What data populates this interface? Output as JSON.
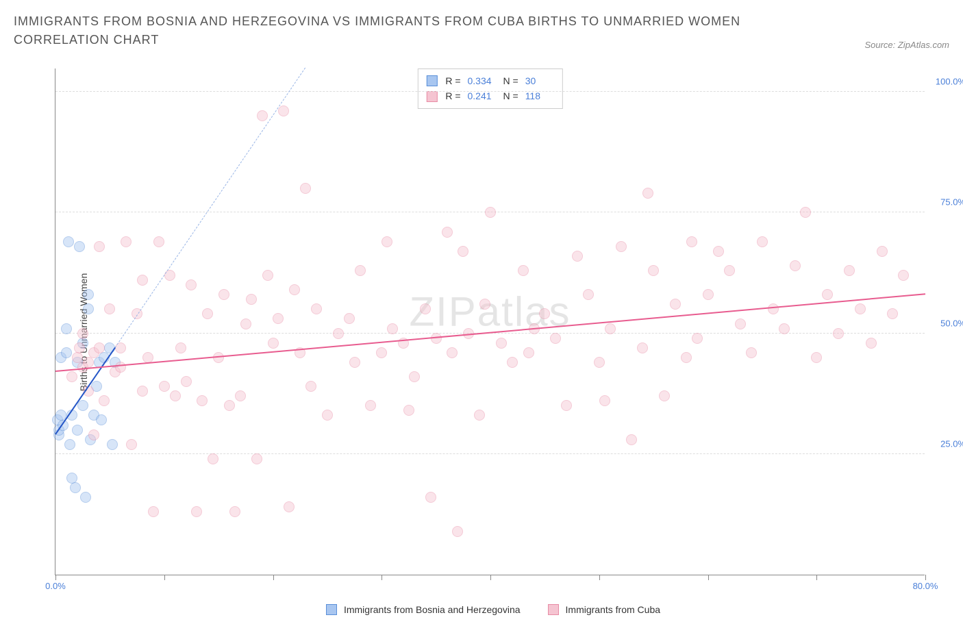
{
  "header": {
    "title": "IMMIGRANTS FROM BOSNIA AND HERZEGOVINA VS IMMIGRANTS FROM CUBA BIRTHS TO UNMARRIED WOMEN CORRELATION CHART",
    "source": "Source: ZipAtlas.com"
  },
  "watermark": {
    "bold": "ZIP",
    "thin": "atlas"
  },
  "chart": {
    "type": "scatter",
    "background_color": "#ffffff",
    "grid_color": "#dddddd",
    "axis_color": "#888888",
    "label_color": "#4a7fd8",
    "title_color": "#555555",
    "axis_title_color": "#444444",
    "y_axis_title": "Births to Unmarried Women",
    "xlim": [
      0,
      80
    ],
    "ylim": [
      0,
      105
    ],
    "y_ticks": [
      25,
      50,
      75,
      100
    ],
    "y_tick_labels": [
      "25.0%",
      "50.0%",
      "75.0%",
      "100.0%"
    ],
    "x_ticks": [
      0,
      10,
      20,
      30,
      40,
      50,
      60,
      70,
      80
    ],
    "x_tick_labels": [
      "0.0%",
      "",
      "",
      "",
      "",
      "",
      "",
      "",
      "80.0%"
    ],
    "marker_radius": 8,
    "marker_opacity": 0.45,
    "series": [
      {
        "id": "bosnia",
        "label": "Immigrants from Bosnia and Herzegovina",
        "fill": "#a8c6f0",
        "stroke": "#5a8fd8",
        "trend_color": "#2456c7",
        "trend_dash_color": "#9ab6e6",
        "stats": {
          "R": "0.334",
          "N": "30"
        },
        "trend": {
          "x1": 0,
          "y1": 29,
          "x2": 5.5,
          "y2": 47
        },
        "trend_dash": {
          "x1": 5.5,
          "y1": 47,
          "x2": 23,
          "y2": 105
        },
        "points": [
          [
            0.2,
            32
          ],
          [
            0.3,
            29
          ],
          [
            0.3,
            30
          ],
          [
            0.5,
            33
          ],
          [
            0.5,
            45
          ],
          [
            0.7,
            31
          ],
          [
            1.0,
            46
          ],
          [
            1.0,
            51
          ],
          [
            1.2,
            69
          ],
          [
            1.3,
            27
          ],
          [
            1.5,
            33
          ],
          [
            1.5,
            20
          ],
          [
            1.8,
            18
          ],
          [
            2.0,
            30
          ],
          [
            2.0,
            44
          ],
          [
            2.2,
            68
          ],
          [
            2.5,
            35
          ],
          [
            2.5,
            48
          ],
          [
            2.8,
            16
          ],
          [
            3.0,
            58
          ],
          [
            3.0,
            55
          ],
          [
            3.2,
            28
          ],
          [
            3.5,
            33
          ],
          [
            3.8,
            39
          ],
          [
            4.0,
            44
          ],
          [
            4.2,
            32
          ],
          [
            4.5,
            45
          ],
          [
            5.0,
            47
          ],
          [
            5.2,
            27
          ],
          [
            5.5,
            44
          ]
        ]
      },
      {
        "id": "cuba",
        "label": "Immigrants from Cuba",
        "fill": "#f5c4d1",
        "stroke": "#e88ba5",
        "trend_color": "#e85c8f",
        "stats": {
          "R": "0.241",
          "N": "118"
        },
        "trend": {
          "x1": 0,
          "y1": 42,
          "x2": 80,
          "y2": 58
        },
        "points": [
          [
            1.5,
            41
          ],
          [
            2.0,
            45
          ],
          [
            2.2,
            47
          ],
          [
            2.5,
            50
          ],
          [
            2.5,
            43
          ],
          [
            3.0,
            38
          ],
          [
            3.0,
            44
          ],
          [
            3.5,
            46
          ],
          [
            3.5,
            29
          ],
          [
            4.0,
            47
          ],
          [
            4.0,
            68
          ],
          [
            4.5,
            36
          ],
          [
            5.0,
            55
          ],
          [
            5.5,
            42
          ],
          [
            6.0,
            43
          ],
          [
            6.0,
            47
          ],
          [
            6.5,
            69
          ],
          [
            7.0,
            27
          ],
          [
            7.5,
            54
          ],
          [
            8.0,
            61
          ],
          [
            8.0,
            38
          ],
          [
            8.5,
            45
          ],
          [
            9.0,
            13
          ],
          [
            9.5,
            69
          ],
          [
            10.0,
            39
          ],
          [
            10.5,
            62
          ],
          [
            11.0,
            37
          ],
          [
            11.5,
            47
          ],
          [
            12.0,
            40
          ],
          [
            12.5,
            60
          ],
          [
            13.0,
            13
          ],
          [
            13.5,
            36
          ],
          [
            14.0,
            54
          ],
          [
            14.5,
            24
          ],
          [
            15.0,
            45
          ],
          [
            15.5,
            58
          ],
          [
            16.0,
            35
          ],
          [
            16.5,
            13
          ],
          [
            17.0,
            37
          ],
          [
            17.5,
            52
          ],
          [
            18.0,
            57
          ],
          [
            18.5,
            24
          ],
          [
            19.0,
            95
          ],
          [
            19.5,
            62
          ],
          [
            20.0,
            48
          ],
          [
            20.5,
            53
          ],
          [
            21.0,
            96
          ],
          [
            21.5,
            14
          ],
          [
            22.0,
            59
          ],
          [
            22.5,
            46
          ],
          [
            23.0,
            80
          ],
          [
            23.5,
            39
          ],
          [
            24.0,
            55
          ],
          [
            25.0,
            33
          ],
          [
            26.0,
            50
          ],
          [
            27.0,
            53
          ],
          [
            27.5,
            44
          ],
          [
            28.0,
            63
          ],
          [
            29.0,
            35
          ],
          [
            30.0,
            46
          ],
          [
            30.5,
            69
          ],
          [
            31.0,
            51
          ],
          [
            32.0,
            48
          ],
          [
            32.5,
            34
          ],
          [
            33.0,
            41
          ],
          [
            34.0,
            55
          ],
          [
            34.5,
            16
          ],
          [
            35.0,
            49
          ],
          [
            36.0,
            71
          ],
          [
            36.5,
            46
          ],
          [
            37.0,
            9
          ],
          [
            37.5,
            67
          ],
          [
            38.0,
            50
          ],
          [
            39.0,
            33
          ],
          [
            39.5,
            56
          ],
          [
            40.0,
            75
          ],
          [
            41.0,
            48
          ],
          [
            42.0,
            44
          ],
          [
            43.0,
            63
          ],
          [
            43.5,
            46
          ],
          [
            44.0,
            51
          ],
          [
            45.0,
            54
          ],
          [
            46.0,
            49
          ],
          [
            47.0,
            35
          ],
          [
            48.0,
            66
          ],
          [
            49.0,
            58
          ],
          [
            50.0,
            44
          ],
          [
            50.5,
            36
          ],
          [
            51.0,
            51
          ],
          [
            52.0,
            68
          ],
          [
            53.0,
            28
          ],
          [
            54.0,
            47
          ],
          [
            54.5,
            79
          ],
          [
            55.0,
            63
          ],
          [
            56.0,
            37
          ],
          [
            57.0,
            56
          ],
          [
            58.0,
            45
          ],
          [
            58.5,
            69
          ],
          [
            59.0,
            49
          ],
          [
            60.0,
            58
          ],
          [
            61.0,
            67
          ],
          [
            62.0,
            63
          ],
          [
            63.0,
            52
          ],
          [
            64.0,
            46
          ],
          [
            65.0,
            69
          ],
          [
            66.0,
            55
          ],
          [
            67.0,
            51
          ],
          [
            68.0,
            64
          ],
          [
            69.0,
            75
          ],
          [
            70.0,
            45
          ],
          [
            71.0,
            58
          ],
          [
            72.0,
            50
          ],
          [
            73.0,
            63
          ],
          [
            74.0,
            55
          ],
          [
            75.0,
            48
          ],
          [
            76.0,
            67
          ],
          [
            77.0,
            54
          ],
          [
            78.0,
            62
          ]
        ]
      }
    ]
  },
  "legend": {
    "items": [
      {
        "label": "Immigrants from Bosnia and Herzegovina",
        "fill": "#a8c6f0",
        "stroke": "#5a8fd8"
      },
      {
        "label": "Immigrants from Cuba",
        "fill": "#f5c4d1",
        "stroke": "#e88ba5"
      }
    ]
  }
}
